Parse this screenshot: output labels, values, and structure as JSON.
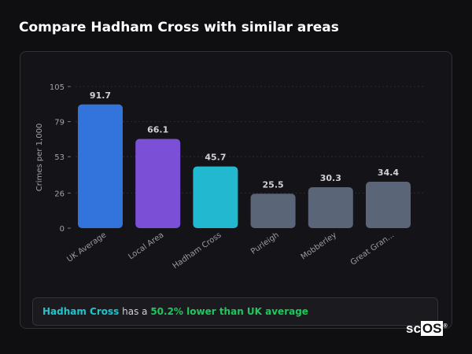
{
  "title": "Compare Hadham Cross with similar areas",
  "chart_data": {
    "type": "bar",
    "title": "",
    "xlabel": "",
    "ylabel": "Crimes per 1,000",
    "ylim": [
      0,
      105
    ],
    "yticks": [
      0,
      26,
      53,
      79,
      105
    ],
    "grid": true,
    "categories": [
      "UK Average",
      "Local Area",
      "Hadham Cross",
      "Purleigh",
      "Mobberley",
      "Great Gran..."
    ],
    "values": [
      91.7,
      66.1,
      45.7,
      25.5,
      30.3,
      34.4
    ],
    "value_labels": [
      "91.7",
      "66.1",
      "45.7",
      "25.5",
      "30.3",
      "34.4"
    ],
    "colors": [
      "#3373dc",
      "#7b4fd6",
      "#22b8d0",
      "#5a6578",
      "#5a6578",
      "#5a6578"
    ]
  },
  "summary": {
    "area": "Hadham Cross",
    "middle": " has a ",
    "comparison": "50.2% lower than UK average"
  },
  "logo": {
    "text_a": "sc",
    "text_b": "OS",
    "mark": "®"
  }
}
